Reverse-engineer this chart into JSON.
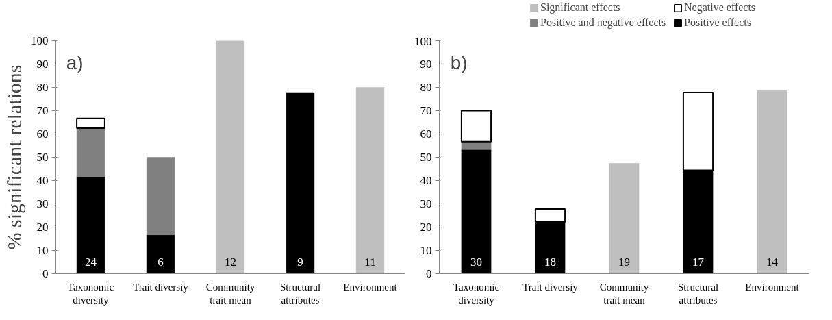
{
  "chart_data": [
    {
      "type": "bar",
      "title": "a)",
      "ylabel": "% significant relations",
      "stacked": true,
      "legend": "top right",
      "categories": [
        "Taxonomic diversity",
        "Trait diversiy",
        "Community trait mean",
        "Structural attributes",
        "Environment"
      ],
      "series": [
        {
          "name": "Positive effects",
          "color": "#000000",
          "values": [
            41.7,
            16.7,
            null,
            77.8,
            null
          ]
        },
        {
          "name": "Positive and negative effects",
          "color": "#808080",
          "values": [
            20.8,
            33.3,
            null,
            null,
            null
          ]
        },
        {
          "name": "Negative effects",
          "color": "#ffffff",
          "values": [
            4.2,
            null,
            null,
            null,
            null
          ]
        },
        {
          "name": "Significant effects",
          "color": "#bfbfbf",
          "values": [
            null,
            null,
            100,
            null,
            80
          ]
        }
      ],
      "ylim": [
        0,
        100
      ],
      "yticks": [
        0,
        10,
        20,
        30,
        40,
        50,
        60,
        70,
        80,
        90,
        100
      ],
      "grid": false,
      "annotations": [
        "24",
        "6",
        "12",
        "9",
        "11"
      ]
    },
    {
      "type": "bar",
      "title": "b)",
      "stacked": true,
      "categories": [
        "Taxonomic diversity",
        "Trait diversiy",
        "Community trait mean",
        "Structural attributes",
        "Environment"
      ],
      "series": [
        {
          "color": "#000000",
          "values": [
            53.3,
            22.2,
            null,
            44.4,
            null
          ]
        },
        {
          "color": "#808080",
          "values": [
            3.4,
            null,
            null,
            null,
            null
          ]
        },
        {
          "color": "#ffffff",
          "values": [
            13.3,
            5.6,
            null,
            33.4,
            null
          ]
        },
        {
          "color": "#bfbfbf",
          "values": [
            null,
            null,
            47.4,
            null,
            78.6
          ]
        }
      ],
      "ylim": [
        0,
        100
      ],
      "yticks": [
        0,
        10,
        20,
        30,
        40,
        50,
        60,
        70,
        80,
        90,
        100
      ],
      "grid": false,
      "annotations": [
        "30",
        "18",
        "19",
        "17",
        "14"
      ]
    }
  ]
}
